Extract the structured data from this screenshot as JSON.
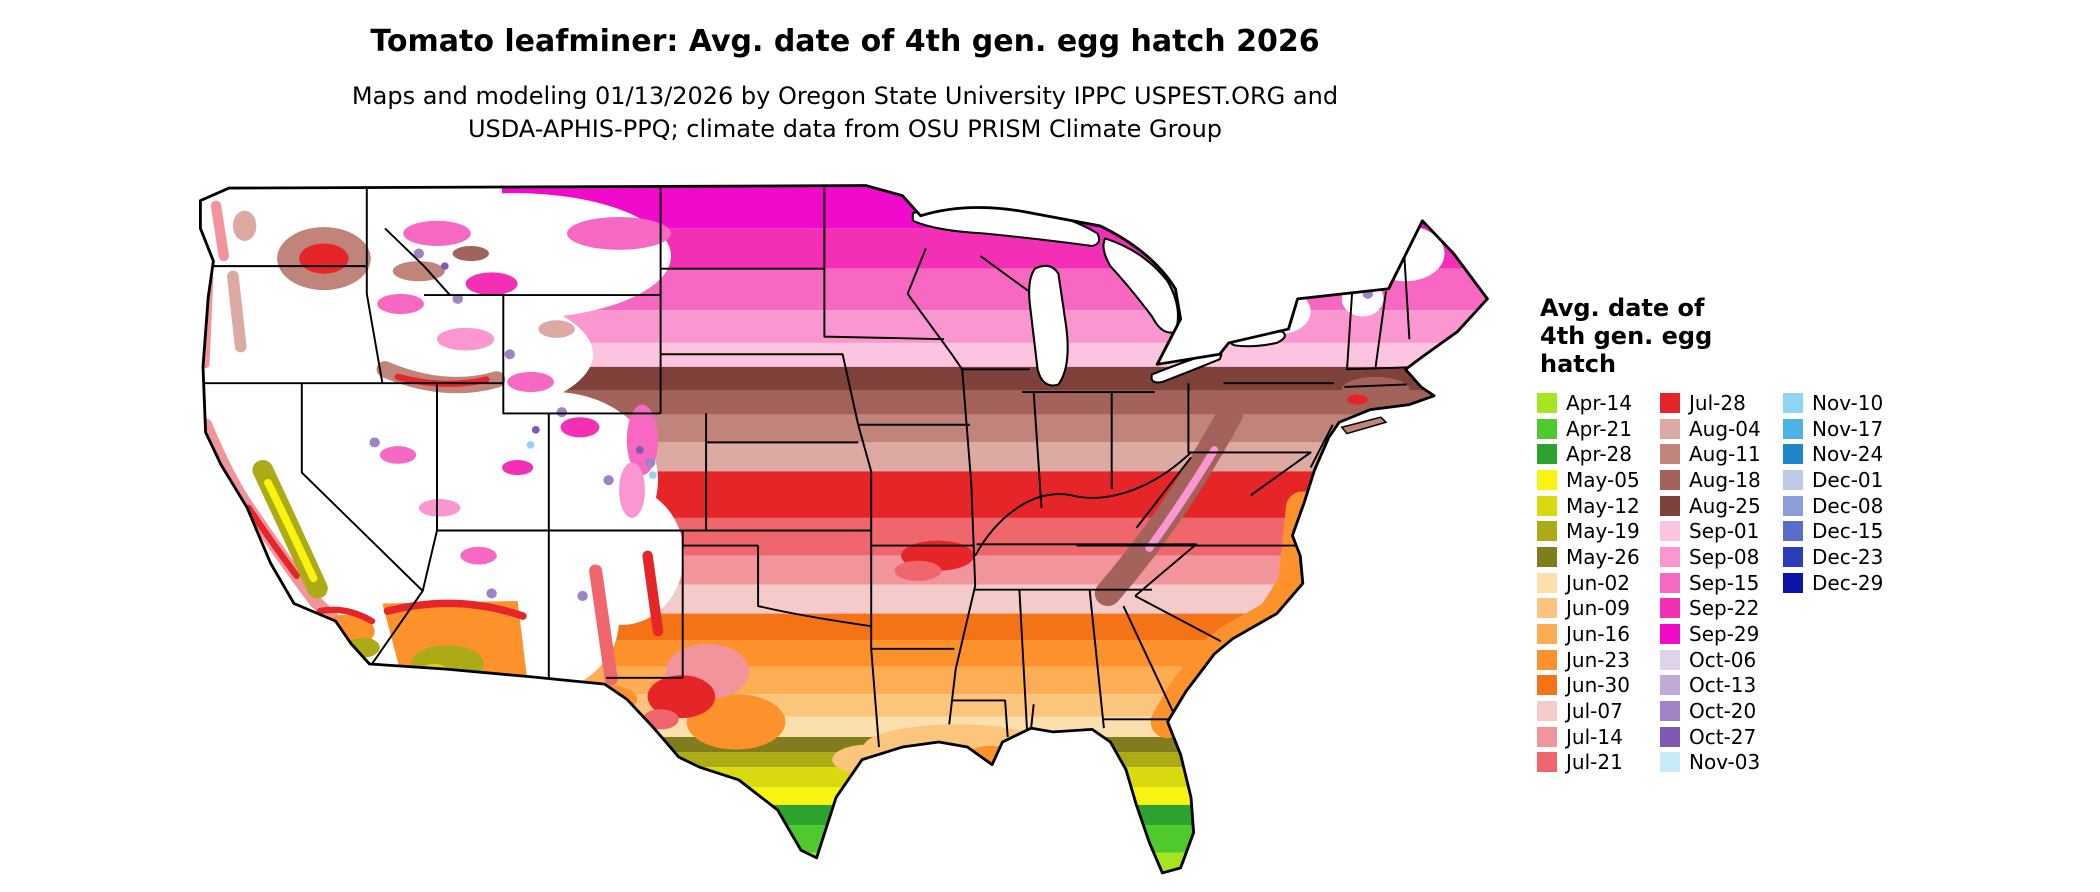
{
  "header": {
    "title": "Tomato leafminer: Avg. date of 4th gen. egg hatch 2026",
    "subtitle_line1": "Maps and modeling 01/13/2026 by Oregon State University IPPC USPEST.ORG and",
    "subtitle_line2": "USDA-APHIS-PPQ; climate data from OSU PRISM Climate Group"
  },
  "legend": {
    "title_lines": [
      "Avg. date of",
      "4th gen. egg",
      "hatch"
    ],
    "columns": [
      [
        {
          "label": "Apr-14",
          "color": "#a6e51f"
        },
        {
          "label": "Apr-21",
          "color": "#4fc92d"
        },
        {
          "label": "Apr-28",
          "color": "#2ba32e"
        },
        {
          "label": "May-05",
          "color": "#f8f410"
        },
        {
          "label": "May-12",
          "color": "#d8d90f"
        },
        {
          "label": "May-19",
          "color": "#acab15"
        },
        {
          "label": "May-26",
          "color": "#7f7d1d"
        },
        {
          "label": "Jun-02",
          "color": "#fbdfad"
        },
        {
          "label": "Jun-09",
          "color": "#fcc57d"
        },
        {
          "label": "Jun-16",
          "color": "#fdad54"
        },
        {
          "label": "Jun-23",
          "color": "#fd922d"
        },
        {
          "label": "Jun-30",
          "color": "#f47317"
        },
        {
          "label": "Jul-07",
          "color": "#f5caca"
        },
        {
          "label": "Jul-14",
          "color": "#f2949c"
        },
        {
          "label": "Jul-21",
          "color": "#ef666c"
        }
      ],
      [
        {
          "label": "Jul-28",
          "color": "#e62528"
        },
        {
          "label": "Aug-04",
          "color": "#dcaaa2"
        },
        {
          "label": "Aug-11",
          "color": "#c0847b"
        },
        {
          "label": "Aug-18",
          "color": "#a3625a"
        },
        {
          "label": "Aug-25",
          "color": "#7e423a"
        },
        {
          "label": "Sep-01",
          "color": "#fcc4e1"
        },
        {
          "label": "Sep-08",
          "color": "#fa96d0"
        },
        {
          "label": "Sep-15",
          "color": "#f768c2"
        },
        {
          "label": "Sep-22",
          "color": "#f330b5"
        },
        {
          "label": "Sep-29",
          "color": "#f00ac9"
        },
        {
          "label": "Oct-06",
          "color": "#ded3eb"
        },
        {
          "label": "Oct-13",
          "color": "#c0aad9"
        },
        {
          "label": "Oct-20",
          "color": "#a083c6"
        },
        {
          "label": "Oct-27",
          "color": "#7f59b3"
        },
        {
          "label": "Nov-03",
          "color": "#c6ecfa"
        }
      ],
      [
        {
          "label": "Nov-10",
          "color": "#8fd5f3"
        },
        {
          "label": "Nov-17",
          "color": "#4db3e5"
        },
        {
          "label": "Nov-24",
          "color": "#1e87c9"
        },
        {
          "label": "Dec-01",
          "color": "#c0c9e7"
        },
        {
          "label": "Dec-08",
          "color": "#8d9dd9"
        },
        {
          "label": "Dec-15",
          "color": "#5b6dc9"
        },
        {
          "label": "Dec-23",
          "color": "#2b3db9"
        },
        {
          "label": "Dec-29",
          "color": "#0b15a9"
        }
      ]
    ]
  },
  "map": {
    "no_data_color": "#ffffff",
    "border_color": "#000000"
  }
}
